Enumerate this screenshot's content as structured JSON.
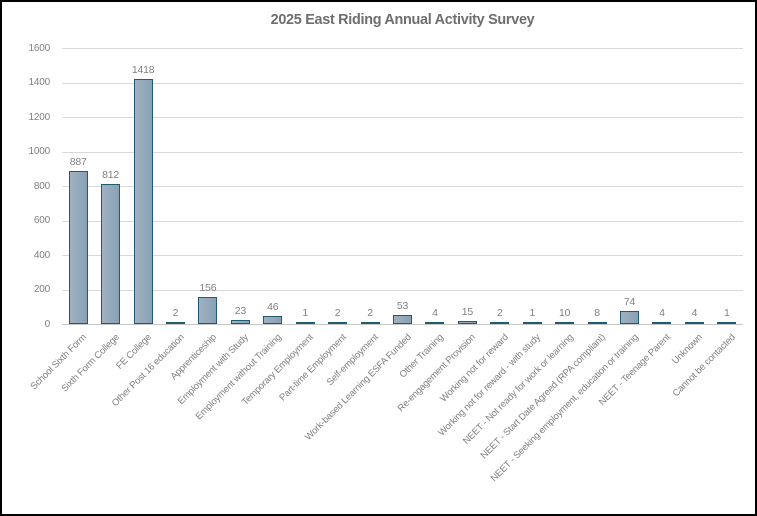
{
  "chart_data": {
    "type": "bar",
    "title": "2025 East Riding Annual Activity Survey",
    "categories": [
      "School Sixth Form",
      "Sixth Form College",
      "FE College",
      "Other Post 16 education",
      "Apprenticeship",
      "Employment with Study",
      "Employment without Training",
      "Temporary Employment",
      "Part-time Employment",
      "Self-employment",
      "Work-based Learning ESFA Funded",
      "Other Training",
      "Re-engagement Provision",
      "Working not for reward",
      "Working not for reward - with study",
      "NEET - Not ready for work or learning",
      "NEET - Start Date Agreed (RPA compliant)",
      "NEET - Seeking employment, education or training",
      "NEET - Teenage Parent",
      "Unknown",
      "Cannot be contacted"
    ],
    "values": [
      887,
      812,
      1418,
      2,
      156,
      23,
      46,
      1,
      2,
      2,
      53,
      4,
      15,
      2,
      1,
      10,
      8,
      74,
      4,
      4,
      1
    ],
    "xlabel": "",
    "ylabel": "",
    "ylim": [
      0,
      1600
    ],
    "ytick_step": 200,
    "yticks": [
      0,
      200,
      400,
      600,
      800,
      1000,
      1200,
      1400,
      1600
    ],
    "grid": true,
    "legend": false,
    "data_labels": true,
    "x_label_rotation_deg": 45,
    "colors": {
      "bar_fill_start": "#9fb1c2",
      "bar_fill_end": "#89a1b5",
      "bar_border": "#1f5c73",
      "title_color": "#6e6e6e",
      "tick_label_color": "#808080",
      "data_label_color": "#808080",
      "gridline_color": "#d9d9d9",
      "axis_line_color": "#c6c6c6",
      "frame_color": "#000000",
      "background": "#ffffff"
    }
  }
}
